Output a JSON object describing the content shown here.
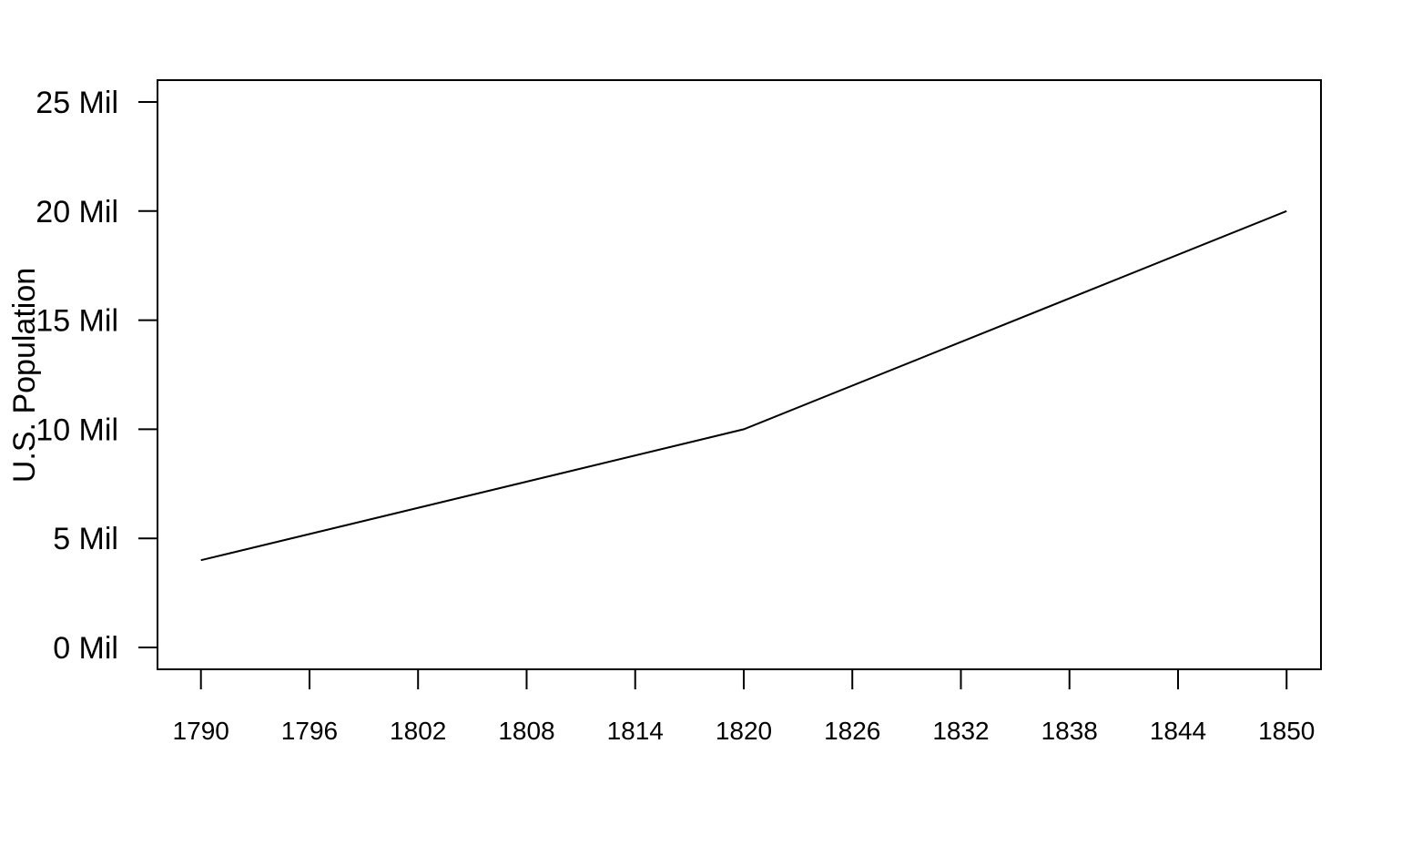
{
  "chart_data": {
    "type": "line",
    "title": "",
    "xlabel": "",
    "ylabel": "U.S. Population",
    "x": [
      1790,
      1820,
      1850
    ],
    "series": [
      {
        "values": [
          4000000,
          10000000,
          20000000
        ],
        "color": "#000000"
      }
    ],
    "xticks": [
      1790,
      1796,
      1802,
      1808,
      1814,
      1820,
      1826,
      1832,
      1838,
      1844,
      1850
    ],
    "xtick_labels": [
      "1790",
      "1796",
      "1802",
      "1808",
      "1814",
      "1820",
      "1826",
      "1832",
      "1838",
      "1844",
      "1850"
    ],
    "yticks": [
      0,
      5000000,
      10000000,
      15000000,
      20000000,
      25000000
    ],
    "ytick_labels": [
      "0 Mil",
      "5 Mil",
      "10 Mil",
      "15 Mil",
      "20 Mil",
      "25 Mil"
    ],
    "xlim": [
      1787.6,
      1851.9
    ],
    "ylim": [
      -1000000,
      26000000
    ],
    "grid": false,
    "legend": false
  }
}
